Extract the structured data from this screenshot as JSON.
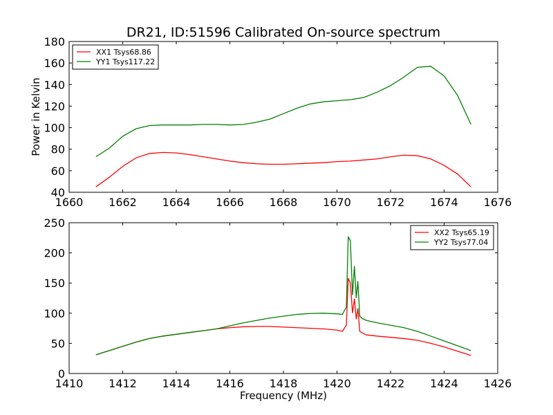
{
  "chart_data": [
    {
      "type": "line",
      "title": "DR21, ID:51596 Calibrated On-source spectrum",
      "xlabel": "",
      "ylabel": "Power in Kelvin",
      "xlim": [
        1660,
        1676
      ],
      "ylim": [
        40,
        180
      ],
      "xticks": [
        1660,
        1662,
        1664,
        1666,
        1668,
        1670,
        1672,
        1674,
        1676
      ],
      "yticks": [
        40,
        60,
        80,
        100,
        120,
        140,
        160,
        180
      ],
      "grid": false,
      "legend_position": "upper-left",
      "series": [
        {
          "name": "XX1 Tsys68.86",
          "color": "#ff0000",
          "x": [
            1661.0,
            1661.5,
            1662.0,
            1662.5,
            1663.0,
            1663.5,
            1664.0,
            1664.5,
            1665.0,
            1665.5,
            1666.0,
            1666.5,
            1667.0,
            1667.5,
            1668.0,
            1668.5,
            1669.0,
            1669.5,
            1670.0,
            1670.5,
            1671.0,
            1671.5,
            1672.0,
            1672.5,
            1673.0,
            1673.5,
            1674.0,
            1674.5,
            1675.0
          ],
          "y": [
            45,
            54,
            64,
            72,
            76,
            77,
            76.5,
            75,
            73,
            71,
            69,
            67.5,
            66.5,
            66,
            66,
            66.5,
            67,
            67.5,
            68.5,
            69,
            70,
            71,
            73,
            74.5,
            74,
            71,
            65,
            57,
            45
          ]
        },
        {
          "name": "YY1 Tsys117.22",
          "color": "#008000",
          "x": [
            1661.0,
            1661.5,
            1662.0,
            1662.5,
            1663.0,
            1663.5,
            1664.0,
            1664.5,
            1665.0,
            1665.5,
            1666.0,
            1666.5,
            1667.0,
            1667.5,
            1668.0,
            1668.5,
            1669.0,
            1669.5,
            1670.0,
            1670.5,
            1671.0,
            1671.5,
            1672.0,
            1672.5,
            1673.0,
            1673.5,
            1674.0,
            1674.5,
            1675.0
          ],
          "y": [
            73,
            81,
            92,
            99,
            102,
            102.5,
            102.5,
            102.5,
            103,
            103,
            102.5,
            103,
            105,
            108,
            113,
            118,
            122,
            124,
            125,
            126,
            128,
            133,
            139,
            147,
            156,
            157,
            148,
            130,
            103
          ]
        }
      ]
    },
    {
      "type": "line",
      "title": "",
      "xlabel": "Frequency (MHz)",
      "ylabel": "",
      "xlim": [
        1410,
        1426
      ],
      "ylim": [
        0,
        250
      ],
      "xticks": [
        1410,
        1412,
        1414,
        1416,
        1418,
        1420,
        1422,
        1424,
        1426
      ],
      "yticks": [
        0,
        50,
        100,
        150,
        200,
        250
      ],
      "grid": false,
      "legend_position": "upper-right",
      "series": [
        {
          "name": "XX2 Tsys65.19",
          "color": "#ff0000",
          "x": [
            1411.0,
            1411.5,
            1412.0,
            1412.5,
            1413.0,
            1413.5,
            1414.0,
            1414.5,
            1415.0,
            1415.5,
            1416.0,
            1416.5,
            1417.0,
            1417.5,
            1418.0,
            1418.5,
            1419.0,
            1419.5,
            1420.0,
            1420.2,
            1420.35,
            1420.42,
            1420.5,
            1420.58,
            1420.65,
            1420.72,
            1420.78,
            1420.85,
            1420.95,
            1421.1,
            1421.5,
            1422.0,
            1422.5,
            1423.0,
            1423.5,
            1424.0,
            1424.5,
            1425.0
          ],
          "y": [
            31,
            38,
            45,
            52,
            58,
            62,
            65,
            68,
            71,
            74,
            76,
            77.5,
            78,
            78,
            77,
            76,
            75,
            74,
            72,
            70,
            80,
            158,
            150,
            100,
            124,
            90,
            108,
            70,
            67,
            64,
            62,
            60,
            58,
            55,
            50,
            44,
            37,
            30
          ]
        },
        {
          "name": "YY2 Tsys77.04",
          "color": "#008000",
          "x": [
            1411.0,
            1411.5,
            1412.0,
            1412.5,
            1413.0,
            1413.5,
            1414.0,
            1414.5,
            1415.0,
            1415.5,
            1416.0,
            1416.5,
            1417.0,
            1417.5,
            1418.0,
            1418.5,
            1419.0,
            1419.5,
            1420.0,
            1420.2,
            1420.35,
            1420.42,
            1420.5,
            1420.58,
            1420.65,
            1420.72,
            1420.78,
            1420.85,
            1420.95,
            1421.1,
            1421.5,
            1422.0,
            1422.5,
            1423.0,
            1423.5,
            1424.0,
            1424.5,
            1425.0
          ],
          "y": [
            31,
            38,
            45,
            52,
            58,
            62,
            65,
            68,
            71,
            74,
            79,
            84,
            88,
            92,
            95,
            98,
            99.5,
            100,
            99,
            98,
            110,
            227,
            220,
            130,
            178,
            125,
            153,
            95,
            91,
            88,
            84,
            80,
            76,
            70,
            62,
            54,
            46,
            38
          ]
        }
      ]
    }
  ]
}
